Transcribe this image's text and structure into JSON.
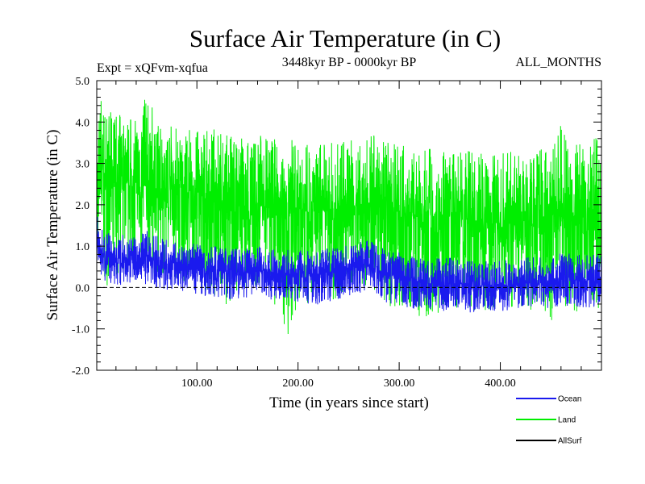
{
  "chart_data": {
    "type": "line",
    "title": "Surface Air Temperature (in C)",
    "experiment": "Expt = xQFvm-xqfua",
    "period": "3448kyr BP - 0000kyr BP",
    "months": "ALL_MONTHS",
    "xlabel": "Time (in years since start)",
    "ylabel": "Surface Air Temperature (in C)",
    "xlim": [
      1,
      500
    ],
    "ylim": [
      -2.0,
      5.0
    ],
    "xticks": [
      100,
      200,
      300,
      400
    ],
    "xtick_labels": [
      "100.00",
      "200.00",
      "300.00",
      "400.00"
    ],
    "yticks": [
      -2.0,
      -1.0,
      0.0,
      1.0,
      2.0,
      3.0,
      4.0,
      5.0
    ],
    "ytick_labels": [
      "-2.0",
      "-1.0",
      "0.0",
      "1.0",
      "2.0",
      "3.0",
      "4.0",
      "5.0"
    ],
    "zero_line": 0.0,
    "series": [
      {
        "name": "Land",
        "color": "#00ee00",
        "x": [
          1,
          5,
          10,
          20,
          30,
          40,
          50,
          60,
          70,
          80,
          90,
          100,
          110,
          120,
          130,
          140,
          150,
          160,
          170,
          180,
          190,
          200,
          210,
          220,
          230,
          240,
          250,
          260,
          270,
          280,
          290,
          300,
          310,
          320,
          330,
          340,
          350,
          360,
          370,
          380,
          390,
          400,
          410,
          420,
          430,
          440,
          450,
          460,
          470,
          480,
          490,
          500
        ],
        "center": [
          2.2,
          2.7,
          2.6,
          2.5,
          2.5,
          2.45,
          2.45,
          2.4,
          2.4,
          2.35,
          2.3,
          2.2,
          2.15,
          2.1,
          2.0,
          2.0,
          1.95,
          2.0,
          2.0,
          1.95,
          1.95,
          1.9,
          1.85,
          1.8,
          1.85,
          1.9,
          1.95,
          2.0,
          2.05,
          1.95,
          1.85,
          1.85,
          1.8,
          1.75,
          1.7,
          1.7,
          1.7,
          1.65,
          1.65,
          1.6,
          1.55,
          1.55,
          1.55,
          1.6,
          1.6,
          1.65,
          1.7,
          1.7,
          1.7,
          1.7,
          1.75,
          1.75
        ],
        "upper": [
          3.6,
          4.8,
          4.3,
          4.2,
          4.2,
          4.1,
          4.7,
          4.1,
          4.0,
          3.95,
          3.9,
          3.8,
          3.8,
          3.9,
          3.7,
          3.7,
          3.6,
          3.75,
          3.7,
          3.65,
          3.6,
          3.55,
          3.55,
          3.5,
          3.5,
          3.55,
          3.6,
          3.7,
          3.75,
          3.6,
          3.5,
          3.5,
          3.45,
          3.4,
          3.35,
          3.35,
          3.3,
          3.3,
          3.3,
          3.35,
          3.3,
          3.3,
          3.3,
          3.35,
          3.3,
          3.4,
          3.4,
          4.0,
          3.5,
          3.6,
          3.7,
          3.75
        ],
        "lower": [
          0.4,
          0.0,
          -0.1,
          0.0,
          0.2,
          0.3,
          0.3,
          0.3,
          0.2,
          0.1,
          0.1,
          -0.1,
          -0.2,
          -0.3,
          -0.6,
          -0.2,
          -0.2,
          -0.3,
          -0.3,
          -0.5,
          -1.15,
          -0.4,
          -0.4,
          -0.3,
          -0.3,
          -0.3,
          -0.2,
          -0.1,
          0.0,
          -0.2,
          -0.5,
          -0.55,
          -0.6,
          -0.7,
          -0.7,
          -0.6,
          -0.55,
          -0.5,
          -0.5,
          -0.6,
          -0.6,
          -0.6,
          -0.5,
          -0.5,
          -0.6,
          -0.55,
          -0.85,
          -0.6,
          -0.55,
          -0.6,
          -0.6,
          -0.5
        ]
      },
      {
        "name": "Ocean",
        "color": "#1a1aee",
        "x": [
          1,
          5,
          10,
          20,
          30,
          40,
          50,
          60,
          70,
          80,
          90,
          100,
          110,
          120,
          130,
          140,
          150,
          160,
          170,
          180,
          190,
          200,
          210,
          220,
          230,
          240,
          250,
          260,
          270,
          280,
          290,
          300,
          310,
          320,
          330,
          340,
          350,
          360,
          370,
          380,
          390,
          400,
          410,
          420,
          430,
          440,
          450,
          460,
          470,
          480,
          490,
          500
        ],
        "center": [
          1.1,
          0.9,
          0.75,
          0.7,
          0.7,
          0.7,
          0.75,
          0.65,
          0.6,
          0.55,
          0.5,
          0.45,
          0.4,
          0.4,
          0.35,
          0.35,
          0.35,
          0.4,
          0.4,
          0.35,
          0.35,
          0.3,
          0.3,
          0.3,
          0.35,
          0.4,
          0.45,
          0.5,
          0.55,
          0.4,
          0.3,
          0.25,
          0.2,
          0.15,
          0.1,
          0.1,
          0.1,
          0.1,
          0.05,
          0.05,
          0.05,
          0.05,
          0.05,
          0.1,
          0.1,
          0.1,
          0.15,
          0.2,
          0.2,
          0.15,
          0.15,
          0.15
        ],
        "upper": [
          1.8,
          1.5,
          1.35,
          1.25,
          1.3,
          1.3,
          1.4,
          1.25,
          1.2,
          1.15,
          1.1,
          1.05,
          1.0,
          1.0,
          0.95,
          0.95,
          0.95,
          1.0,
          1.0,
          0.95,
          0.95,
          0.9,
          0.9,
          0.9,
          0.95,
          1.0,
          1.05,
          1.1,
          1.15,
          1.0,
          0.9,
          0.85,
          0.8,
          0.75,
          0.7,
          0.75,
          0.75,
          0.7,
          0.7,
          0.65,
          0.7,
          0.65,
          0.7,
          0.7,
          0.75,
          0.75,
          0.8,
          0.85,
          0.85,
          0.8,
          0.8,
          0.8
        ],
        "lower": [
          0.5,
          0.3,
          0.1,
          0.05,
          0.05,
          0.1,
          0.05,
          0.0,
          -0.05,
          -0.1,
          -0.1,
          -0.2,
          -0.25,
          -0.25,
          -0.3,
          -0.3,
          -0.3,
          -0.25,
          -0.3,
          -0.3,
          -0.35,
          -0.4,
          -0.4,
          -0.45,
          -0.35,
          -0.3,
          -0.2,
          -0.15,
          -0.1,
          -0.25,
          -0.4,
          -0.45,
          -0.5,
          -0.55,
          -0.55,
          -0.6,
          -0.55,
          -0.55,
          -0.6,
          -0.6,
          -0.55,
          -0.6,
          -0.55,
          -0.5,
          -0.55,
          -0.5,
          -0.5,
          -0.45,
          -0.45,
          -0.5,
          -0.5,
          -0.45
        ]
      },
      {
        "name": "AllSurf",
        "color": "#000000",
        "x": [],
        "center": [],
        "upper": [],
        "lower": []
      }
    ],
    "legend": [
      {
        "label": "Ocean",
        "color": "#1a1aee"
      },
      {
        "label": "Land",
        "color": "#00ee00"
      },
      {
        "label": "AllSurf",
        "color": "#000000"
      }
    ],
    "legend_position": "bottom-right"
  }
}
